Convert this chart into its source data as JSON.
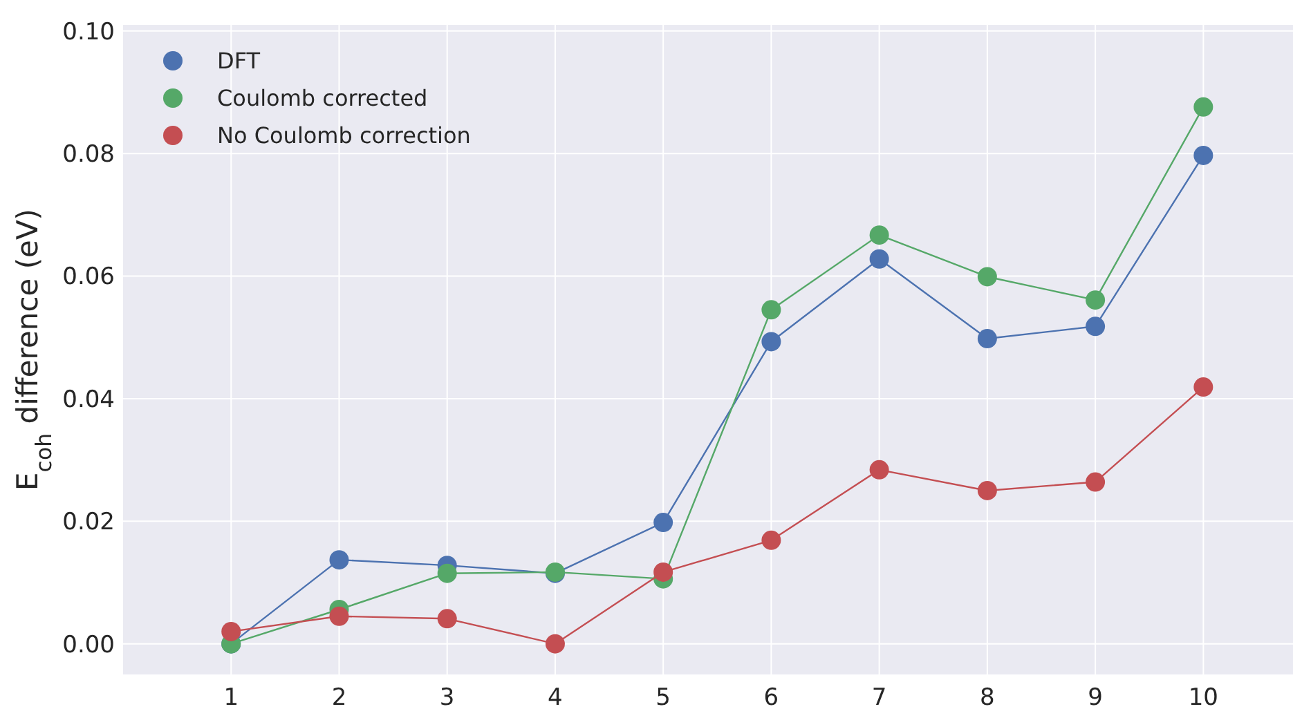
{
  "chart_data": {
    "type": "line",
    "ylabel": "E$_{coh}$ difference (eV)",
    "x": [
      1,
      2,
      3,
      4,
      5,
      6,
      7,
      8,
      9,
      10
    ],
    "xlim": [
      0,
      10.83
    ],
    "xticks": [
      1,
      2,
      3,
      4,
      5,
      6,
      7,
      8,
      9,
      10
    ],
    "ylim": [
      -0.005,
      0.101
    ],
    "yticks": [
      {
        "value": 0,
        "label": "0.00"
      },
      {
        "value": 0.02,
        "label": "0.02"
      },
      {
        "value": 0.04,
        "label": "0.04"
      },
      {
        "value": 0.06,
        "label": "0.06"
      },
      {
        "value": 0.08,
        "label": "0.08"
      },
      {
        "value": 0.1,
        "label": "0.10"
      }
    ],
    "grid": true,
    "legend": "top left",
    "marker": "circle",
    "line_style": "solid",
    "series": [
      {
        "name": "DFT",
        "color": "#4c72b0",
        "values": [
          0,
          0.0137,
          0.0128,
          0.0115,
          0.0198,
          0.0493,
          0.0628,
          0.0498,
          0.0518,
          0.0797
        ]
      },
      {
        "name": "Coulomb corrected",
        "color": "#55a868",
        "values": [
          0,
          0.0056,
          0.0115,
          0.0117,
          0.0106,
          0.0545,
          0.0667,
          0.0599,
          0.0561,
          0.0876
        ]
      },
      {
        "name": "No Coulomb correction",
        "color": "#c44e52",
        "values": [
          0.002,
          0.0045,
          0.0041,
          0,
          0.0117,
          0.0169,
          0.0284,
          0.025,
          0.0264,
          0.0419
        ]
      }
    ]
  }
}
